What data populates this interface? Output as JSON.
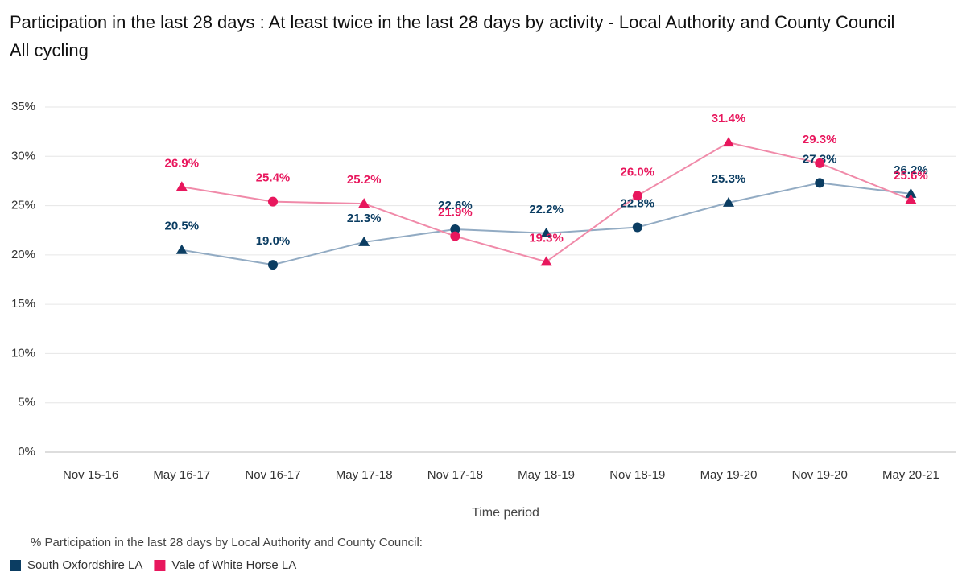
{
  "chart_data": {
    "type": "line",
    "title": "Participation in the last 28 days : At least twice in the last 28 days  by activity - Local Authority and County Council",
    "subtitle": "All cycling",
    "x_label": "Time period",
    "legend_title": "% Participation in the last 28 days by Local Authority and County Council:",
    "categories": [
      "Nov 15-16",
      "May 16-17",
      "Nov 16-17",
      "May 17-18",
      "Nov 17-18",
      "May 18-19",
      "Nov 18-19",
      "May 19-20",
      "Nov 19-20",
      "May 20-21"
    ],
    "series": [
      {
        "name": "South Oxfordshire LA",
        "color": "#0b3d62",
        "line_color": "#92abc3",
        "values": [
          null,
          20.5,
          19.0,
          21.3,
          22.6,
          22.2,
          22.8,
          25.3,
          27.3,
          26.2
        ],
        "value_labels": [
          null,
          "20.5%",
          "19.0%",
          "21.3%",
          "22.6%",
          "22.2%",
          "22.8%",
          "25.3%",
          "27.3%",
          "26.2%"
        ]
      },
      {
        "name": "Vale of White Horse LA",
        "color": "#e8175d",
        "line_color": "#f08aa9",
        "values": [
          null,
          26.9,
          25.4,
          25.2,
          21.9,
          19.3,
          26.0,
          31.4,
          29.3,
          25.6
        ],
        "value_labels": [
          null,
          "26.9%",
          "25.4%",
          "25.2%",
          "21.9%",
          "19.3%",
          "26.0%",
          "31.4%",
          "29.3%",
          "25.6%"
        ]
      }
    ],
    "ylim": [
      0,
      35
    ],
    "yticks": [
      {
        "value": 0,
        "label": "0%"
      },
      {
        "value": 5,
        "label": "5%"
      },
      {
        "value": 10,
        "label": "10%"
      },
      {
        "value": 15,
        "label": "15%"
      },
      {
        "value": 20,
        "label": "20%"
      },
      {
        "value": 25,
        "label": "25%"
      },
      {
        "value": 30,
        "label": "30%"
      },
      {
        "value": 35,
        "label": "35%"
      }
    ],
    "grid": true
  }
}
